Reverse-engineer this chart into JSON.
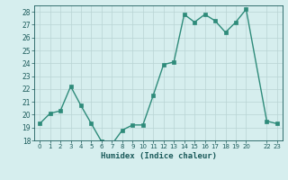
{
  "x": [
    0,
    1,
    2,
    3,
    4,
    5,
    6,
    7,
    8,
    9,
    10,
    11,
    12,
    13,
    14,
    15,
    16,
    17,
    18,
    19,
    20,
    22,
    23
  ],
  "y": [
    19.3,
    20.1,
    20.3,
    22.2,
    20.7,
    19.3,
    17.9,
    17.7,
    18.8,
    19.2,
    19.2,
    21.5,
    23.9,
    24.1,
    27.8,
    27.2,
    27.8,
    27.3,
    26.4,
    27.2,
    28.2,
    19.5,
    19.3
  ],
  "title": "",
  "xlabel": "Humidex (Indice chaleur)",
  "ylabel": "",
  "xlim": [
    -0.5,
    23.5
  ],
  "ylim": [
    18,
    28.5
  ],
  "yticks": [
    18,
    19,
    20,
    21,
    22,
    23,
    24,
    25,
    26,
    27,
    28
  ],
  "xtick_positions": [
    0,
    1,
    2,
    3,
    4,
    5,
    6,
    7,
    8,
    9,
    10,
    11,
    12,
    13,
    14,
    15,
    16,
    17,
    18,
    19,
    20,
    22,
    23
  ],
  "xtick_labels": [
    "0",
    "1",
    "2",
    "3",
    "4",
    "5",
    "6",
    "7",
    "8",
    "9",
    "10",
    "11",
    "12",
    "13",
    "14",
    "15",
    "16",
    "17",
    "18",
    "19",
    "20",
    "22",
    "23"
  ],
  "line_color": "#2e8b7a",
  "marker_color": "#2e8b7a",
  "bg_color": "#d6eeee",
  "grid_color": "#b8d4d4",
  "label_color": "#1a5a5a",
  "tick_color": "#1a5a5a"
}
